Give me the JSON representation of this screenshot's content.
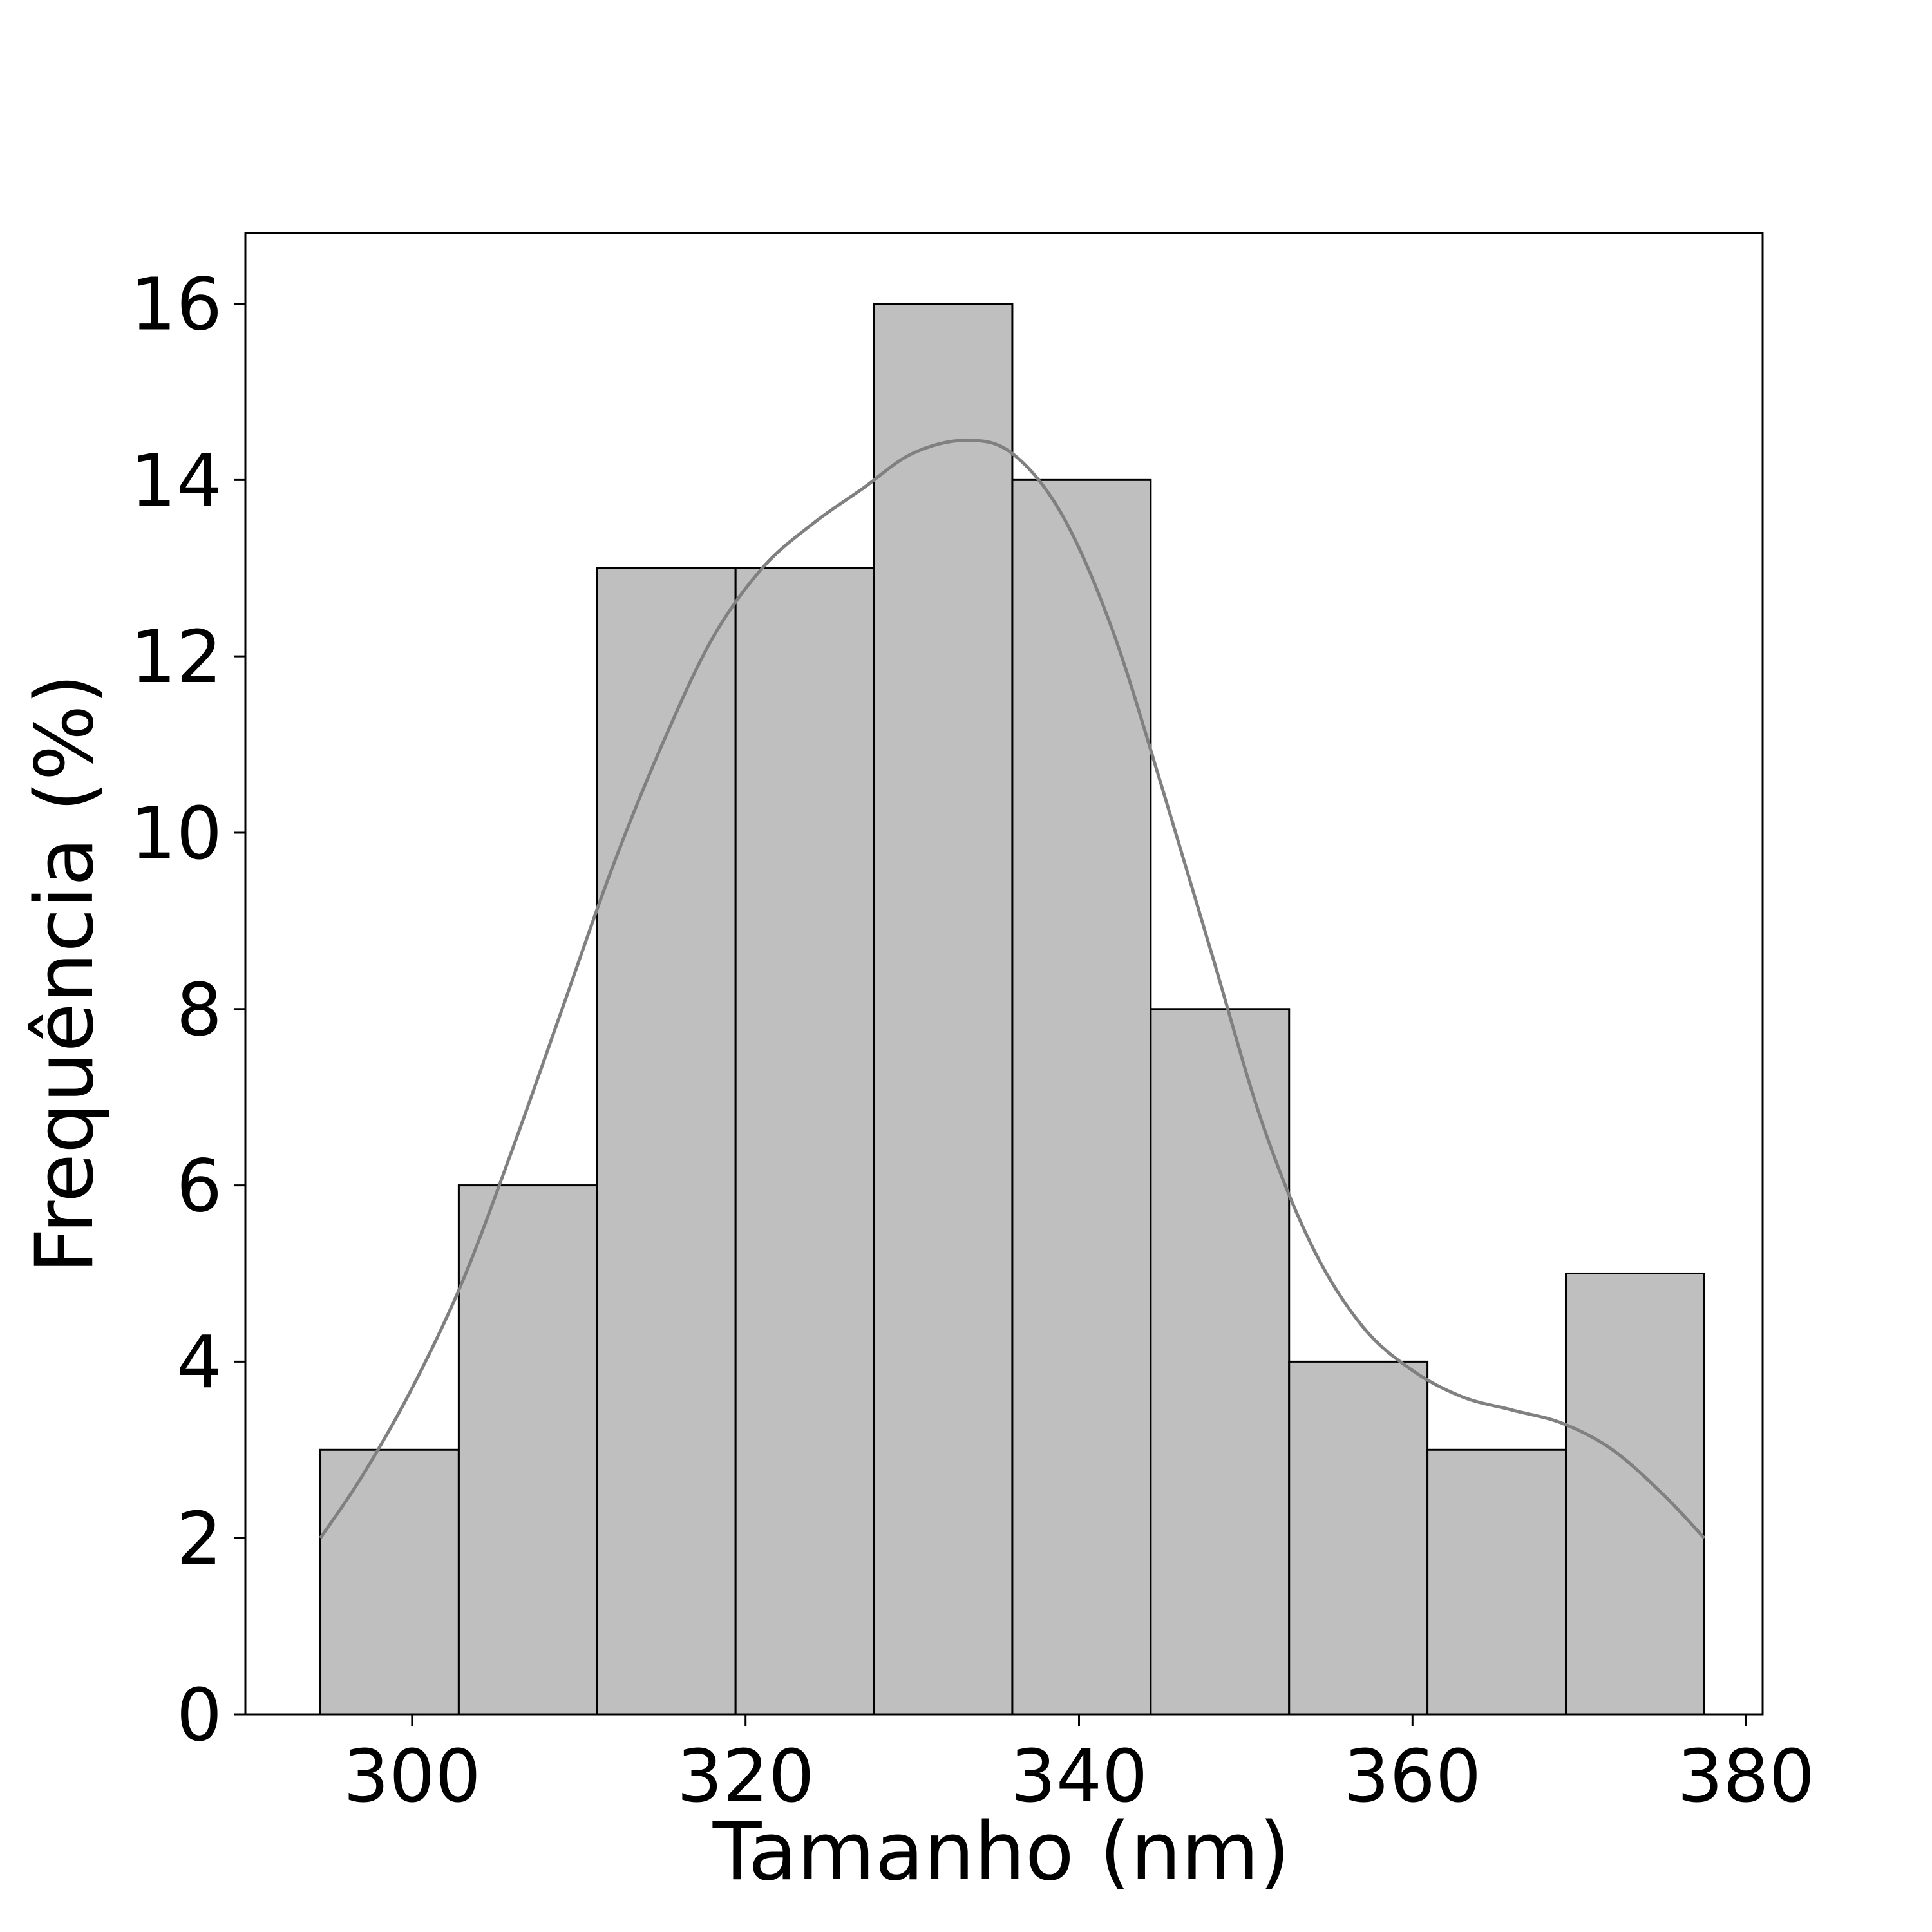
{
  "chart_data": {
    "type": "bar",
    "subtype": "histogram",
    "title": "",
    "xlabel": "Tamanho (nm)",
    "ylabel": "Frequência (%)",
    "xlim": [
      290,
      381
    ],
    "ylim": [
      0,
      16.8
    ],
    "x_ticks": [
      300,
      320,
      340,
      360,
      380
    ],
    "y_ticks": [
      0,
      2,
      4,
      6,
      8,
      10,
      12,
      14,
      16
    ],
    "bins": [
      {
        "start": 294.5,
        "end": 302.8,
        "value": 3
      },
      {
        "start": 302.8,
        "end": 311.1,
        "value": 6
      },
      {
        "start": 311.1,
        "end": 319.4,
        "value": 13
      },
      {
        "start": 319.4,
        "end": 327.7,
        "value": 13
      },
      {
        "start": 327.7,
        "end": 336.0,
        "value": 16
      },
      {
        "start": 336.0,
        "end": 344.3,
        "value": 14
      },
      {
        "start": 344.3,
        "end": 352.6,
        "value": 8
      },
      {
        "start": 352.6,
        "end": 360.9,
        "value": 4
      },
      {
        "start": 360.9,
        "end": 369.2,
        "value": 3
      },
      {
        "start": 369.2,
        "end": 377.5,
        "value": 5
      }
    ],
    "kde": {
      "x": [
        294.5,
        297,
        300,
        303,
        306,
        309,
        312,
        315,
        318,
        321,
        324,
        327,
        330,
        333.2,
        336,
        339,
        342,
        345,
        348,
        351,
        354,
        357,
        360,
        363,
        366,
        369,
        372,
        375,
        377.5
      ],
      "y": [
        2.0,
        2.7,
        3.7,
        4.9,
        6.4,
        8.0,
        9.6,
        11.0,
        12.2,
        13.0,
        13.5,
        13.9,
        14.3,
        14.45,
        14.3,
        13.6,
        12.3,
        10.5,
        8.6,
        6.7,
        5.3,
        4.4,
        3.9,
        3.6,
        3.45,
        3.3,
        3.0,
        2.5,
        2.0
      ]
    },
    "grid": false,
    "legend": "none",
    "colors": {
      "bar_fill": "#bfbfbf",
      "bar_edge": "#000000",
      "kde_line": "#808080",
      "axes": "#000000"
    }
  }
}
